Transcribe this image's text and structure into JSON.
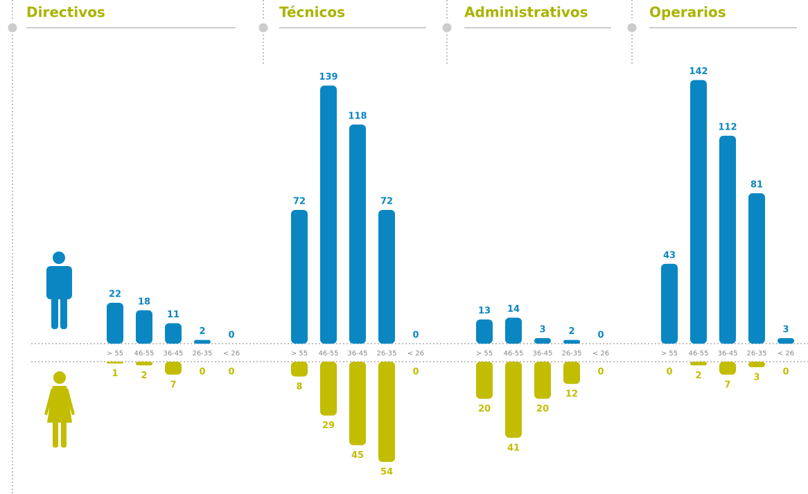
{
  "chart_data": [
    {
      "type": "bar",
      "title": "Directivos",
      "categories": [
        "> 55",
        "46-55",
        "36-45",
        "26-35",
        "< 26"
      ],
      "series": [
        {
          "color": "#0a87c2",
          "values": [
            22,
            18,
            11,
            2,
            0
          ]
        },
        {
          "color": "#c2bd00",
          "values": [
            1,
            2,
            7,
            0,
            0
          ]
        }
      ]
    },
    {
      "type": "bar",
      "title": "Técnicos",
      "categories": [
        "> 55",
        "46-55",
        "36-45",
        "26-35",
        "< 26"
      ],
      "series": [
        {
          "color": "#0a87c2",
          "values": [
            72,
            139,
            118,
            72,
            0
          ]
        },
        {
          "color": "#c2bd00",
          "values": [
            8,
            29,
            45,
            54,
            0
          ]
        }
      ]
    },
    {
      "type": "bar",
      "title": "Administrativos",
      "categories": [
        "> 55",
        "46-55",
        "36-45",
        "26-35",
        "< 26"
      ],
      "series": [
        {
          "color": "#0a87c2",
          "values": [
            13,
            14,
            3,
            2,
            0
          ]
        },
        {
          "color": "#c2bd00",
          "values": [
            20,
            41,
            20,
            12,
            0
          ]
        }
      ]
    },
    {
      "type": "bar",
      "title": "Operarios",
      "categories": [
        "> 55",
        "46-55",
        "36-45",
        "26-35",
        "< 26"
      ],
      "series": [
        {
          "color": "#0a87c2",
          "values": [
            43,
            142,
            112,
            81,
            3
          ]
        },
        {
          "color": "#c2bd00",
          "values": [
            0,
            2,
            7,
            3,
            0
          ]
        }
      ]
    }
  ]
}
